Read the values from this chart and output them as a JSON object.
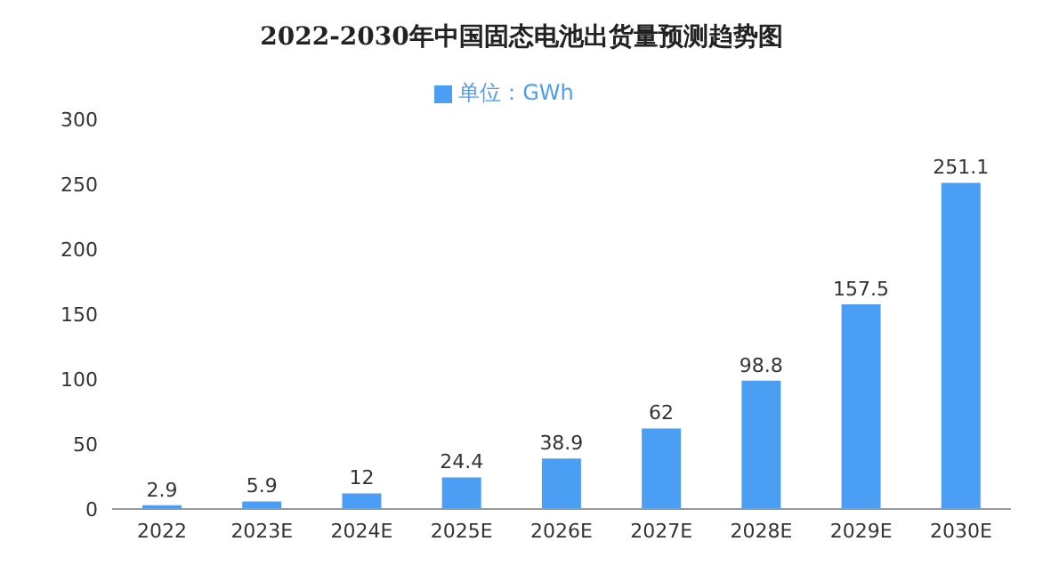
{
  "chart_data": {
    "type": "bar",
    "title": "2022-2030年中国固态电池出货量预测趋势图",
    "categories": [
      "2022",
      "2023E",
      "2024E",
      "2025E",
      "2026E",
      "2027E",
      "2028E",
      "2029E",
      "2030E"
    ],
    "series": [
      {
        "name": "单位：GWh",
        "color": "#4a9ff5",
        "values": [
          2.9,
          5.9,
          12,
          24.4,
          38.9,
          62,
          98.8,
          157.5,
          251.1
        ]
      }
    ],
    "ylim": [
      0,
      300
    ],
    "yticks": [
      0,
      50,
      100,
      150,
      200,
      250,
      300
    ],
    "grid": false,
    "legend": "top",
    "data_labels": true
  }
}
